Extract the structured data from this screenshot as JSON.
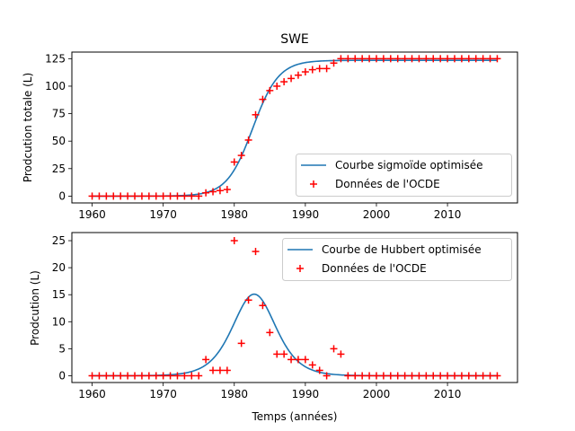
{
  "chart_data": [
    {
      "type": "line",
      "title": "SWE",
      "xlabel": "",
      "ylabel": "Prodcution totale (L)",
      "xlim": [
        1957.15,
        2019.85
      ],
      "ylim": [
        -6.2,
        131
      ],
      "xticks": [
        1960,
        1970,
        1980,
        1990,
        2000,
        2010
      ],
      "yticks": [
        0,
        25,
        50,
        75,
        100,
        125
      ],
      "grid": false,
      "legend_position": "lower-right",
      "legend": [
        "Courbe sigmoïde optimisée",
        "Données de l'OCDE"
      ],
      "colors": {
        "line": "#1f77b4",
        "marker": "#ff0000"
      },
      "series": [
        {
          "name": "Courbe sigmoïde optimisée",
          "kind": "line",
          "model": "logistic",
          "params": {
            "L": 123.5,
            "x0": 1982.6,
            "k": 0.55
          },
          "x_range": [
            1960,
            2017
          ]
        },
        {
          "name": "Données de l'OCDE",
          "kind": "scatter",
          "marker": "+",
          "x": [
            1960,
            1961,
            1962,
            1963,
            1964,
            1965,
            1966,
            1967,
            1968,
            1969,
            1970,
            1971,
            1972,
            1973,
            1974,
            1975,
            1976,
            1977,
            1978,
            1979,
            1980,
            1981,
            1982,
            1983,
            1984,
            1985,
            1986,
            1987,
            1988,
            1989,
            1990,
            1991,
            1992,
            1993,
            1994,
            1995,
            1996,
            1997,
            1998,
            1999,
            2000,
            2001,
            2002,
            2003,
            2004,
            2005,
            2006,
            2007,
            2008,
            2009,
            2010,
            2011,
            2012,
            2013,
            2014,
            2015,
            2016,
            2017
          ],
          "y": [
            0,
            0,
            0,
            0,
            0,
            0,
            0,
            0,
            0,
            0,
            0,
            0,
            0,
            0,
            0,
            0,
            3,
            4,
            5,
            6,
            31,
            37,
            51,
            74,
            88,
            96,
            100,
            104,
            107,
            110,
            113,
            115,
            116,
            116,
            121,
            125,
            125,
            125,
            125,
            125,
            125,
            125,
            125,
            125,
            125,
            125,
            125,
            125,
            125,
            125,
            125,
            125,
            125,
            125,
            125,
            125,
            125,
            125
          ]
        }
      ]
    },
    {
      "type": "line",
      "title": "",
      "xlabel": "Temps (années)",
      "ylabel": "Prodcution (L)",
      "xlim": [
        1957.15,
        2019.85
      ],
      "ylim": [
        -1.25,
        26.5
      ],
      "xticks": [
        1960,
        1970,
        1980,
        1990,
        2000,
        2010
      ],
      "yticks": [
        0,
        5,
        10,
        15,
        20,
        25
      ],
      "grid": false,
      "legend_position": "upper-right",
      "legend": [
        "Courbe de Hubbert optimisée",
        "Données de l'OCDE"
      ],
      "colors": {
        "line": "#1f77b4",
        "marker": "#ff0000"
      },
      "series": [
        {
          "name": "Courbe de Hubbert optimisée",
          "kind": "line",
          "model": "hubbert",
          "params": {
            "peak": 15.1,
            "x0": 1982.8,
            "k": 0.49
          },
          "x_range": [
            1960,
            2017
          ]
        },
        {
          "name": "Données de l'OCDE",
          "kind": "scatter",
          "marker": "+",
          "x": [
            1960,
            1961,
            1962,
            1963,
            1964,
            1965,
            1966,
            1967,
            1968,
            1969,
            1970,
            1971,
            1972,
            1973,
            1974,
            1975,
            1976,
            1977,
            1978,
            1979,
            1980,
            1981,
            1982,
            1983,
            1984,
            1985,
            1986,
            1987,
            1988,
            1989,
            1990,
            1991,
            1992,
            1993,
            1994,
            1995,
            1996,
            1997,
            1998,
            1999,
            2000,
            2001,
            2002,
            2003,
            2004,
            2005,
            2006,
            2007,
            2008,
            2009,
            2010,
            2011,
            2012,
            2013,
            2014,
            2015,
            2016,
            2017
          ],
          "y": [
            0,
            0,
            0,
            0,
            0,
            0,
            0,
            0,
            0,
            0,
            0,
            0,
            0,
            0,
            0,
            0,
            3,
            1,
            1,
            1,
            25,
            6,
            14,
            23,
            13,
            8,
            4,
            4,
            3,
            3,
            3,
            2,
            1,
            0,
            5,
            4,
            0,
            0,
            0,
            0,
            0,
            0,
            0,
            0,
            0,
            0,
            0,
            0,
            0,
            0,
            0,
            0,
            0,
            0,
            0,
            0,
            0,
            0
          ]
        }
      ]
    }
  ]
}
